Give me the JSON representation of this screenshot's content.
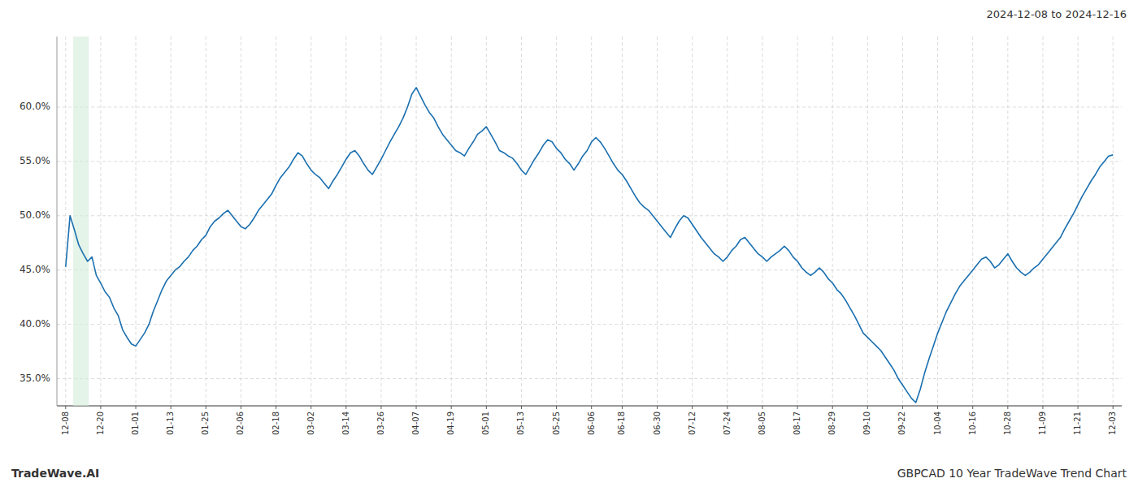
{
  "chart_data": {
    "type": "line",
    "title": "GBPCAD 10 Year TradeWave Trend Chart",
    "subtitle": "2024-12-08 to 2024-12-16",
    "annotations": [
      "TradeWave.AI"
    ],
    "color": "#1a6faf",
    "grid": true,
    "shade": {
      "start_frac": 0.007,
      "end_frac": 0.022,
      "color": "#d4edda"
    },
    "ylim": [
      0.325,
      0.665
    ],
    "yticks": [
      {
        "value": 0.35,
        "label": "35.0%"
      },
      {
        "value": 0.4,
        "label": "40.0%"
      },
      {
        "value": 0.45,
        "label": "45.0%"
      },
      {
        "value": 0.5,
        "label": "50.0%"
      },
      {
        "value": 0.55,
        "label": "55.0%"
      },
      {
        "value": 0.6,
        "label": "60.0%"
      }
    ],
    "categories": [
      "12-08",
      null,
      null,
      null,
      null,
      null,
      null,
      null,
      "12-20",
      null,
      null,
      null,
      null,
      null,
      null,
      null,
      "01-01",
      null,
      null,
      null,
      null,
      null,
      null,
      null,
      "01-13",
      null,
      null,
      null,
      null,
      null,
      null,
      null,
      "01-25",
      null,
      null,
      null,
      null,
      null,
      null,
      null,
      "02-06",
      null,
      null,
      null,
      null,
      null,
      null,
      null,
      "02-18",
      null,
      null,
      null,
      null,
      null,
      null,
      null,
      "03-02",
      null,
      null,
      null,
      null,
      null,
      null,
      null,
      "03-14",
      null,
      null,
      null,
      null,
      null,
      null,
      null,
      "03-26",
      null,
      null,
      null,
      null,
      null,
      null,
      null,
      "04-07",
      null,
      null,
      null,
      null,
      null,
      null,
      null,
      "04-19",
      null,
      null,
      null,
      null,
      null,
      null,
      null,
      "05-01",
      null,
      null,
      null,
      null,
      null,
      null,
      null,
      "05-13",
      null,
      null,
      null,
      null,
      null,
      null,
      null,
      "05-25",
      null,
      null,
      null,
      null,
      null,
      null,
      null,
      "06-06",
      null,
      null,
      null,
      null,
      null,
      null,
      "06-18",
      null,
      null,
      null,
      null,
      null,
      null,
      null,
      "06-30",
      null,
      null,
      null,
      null,
      null,
      null,
      null,
      "07-12",
      null,
      null,
      null,
      null,
      null,
      null,
      null,
      "07-24",
      null,
      null,
      null,
      null,
      null,
      null,
      null,
      "08-05",
      null,
      null,
      null,
      null,
      null,
      null,
      null,
      "08-17",
      null,
      null,
      null,
      null,
      null,
      null,
      null,
      "08-29",
      null,
      null,
      null,
      null,
      null,
      null,
      null,
      "09-10",
      null,
      null,
      null,
      null,
      null,
      null,
      null,
      "09-22",
      null,
      null,
      null,
      null,
      null,
      null,
      null,
      "10-04",
      null,
      null,
      null,
      null,
      null,
      null,
      null,
      "10-16",
      null,
      null,
      null,
      null,
      null,
      null,
      null,
      "10-28",
      null,
      null,
      null,
      null,
      null,
      null,
      null,
      "11-09",
      null,
      null,
      null,
      null,
      null,
      null,
      null,
      "11-21",
      null,
      null,
      null,
      null,
      null,
      null,
      null,
      "12-03"
    ],
    "values": [
      0.453,
      0.5,
      0.487,
      0.473,
      0.465,
      0.458,
      0.462,
      0.445,
      0.438,
      0.43,
      0.425,
      0.415,
      0.408,
      0.395,
      0.388,
      0.382,
      0.38,
      0.386,
      0.392,
      0.4,
      0.412,
      0.422,
      0.432,
      0.44,
      0.445,
      0.45,
      0.453,
      0.458,
      0.462,
      0.468,
      0.472,
      0.478,
      0.482,
      0.49,
      0.495,
      0.498,
      0.502,
      0.505,
      0.5,
      0.495,
      0.49,
      0.488,
      0.492,
      0.498,
      0.505,
      0.51,
      0.515,
      0.52,
      0.528,
      0.535,
      0.54,
      0.545,
      0.552,
      0.558,
      0.555,
      0.548,
      0.542,
      0.538,
      0.535,
      0.53,
      0.525,
      0.532,
      0.538,
      0.545,
      0.552,
      0.558,
      0.56,
      0.555,
      0.548,
      0.542,
      0.538,
      0.545,
      0.552,
      0.56,
      0.568,
      0.575,
      0.582,
      0.59,
      0.6,
      0.612,
      0.618,
      0.61,
      0.602,
      0.595,
      0.59,
      0.582,
      0.575,
      0.57,
      0.565,
      0.56,
      0.558,
      0.555,
      0.562,
      0.568,
      0.575,
      0.578,
      0.582,
      0.575,
      0.568,
      0.56,
      0.558,
      0.555,
      0.553,
      0.548,
      0.542,
      0.538,
      0.545,
      0.552,
      0.558,
      0.565,
      0.57,
      0.568,
      0.562,
      0.558,
      0.552,
      0.548,
      0.542,
      0.548,
      0.555,
      0.56,
      0.568,
      0.572,
      0.568,
      0.562,
      0.555,
      0.548,
      0.542,
      0.538,
      0.532,
      0.525,
      0.518,
      0.512,
      0.508,
      0.505,
      0.5,
      0.495,
      0.49,
      0.485,
      0.48,
      0.488,
      0.495,
      0.5,
      0.498,
      0.492,
      0.486,
      0.48,
      0.475,
      0.47,
      0.465,
      0.462,
      0.458,
      0.462,
      0.468,
      0.472,
      0.478,
      0.48,
      0.475,
      0.47,
      0.465,
      0.462,
      0.458,
      0.462,
      0.465,
      0.468,
      0.472,
      0.468,
      0.462,
      0.458,
      0.452,
      0.448,
      0.445,
      0.448,
      0.452,
      0.448,
      0.442,
      0.438,
      0.432,
      0.428,
      0.422,
      0.415,
      0.408,
      0.4,
      0.392,
      0.388,
      0.384,
      0.38,
      0.376,
      0.37,
      0.364,
      0.358,
      0.35,
      0.344,
      0.338,
      0.332,
      0.328,
      0.34,
      0.355,
      0.368,
      0.38,
      0.392,
      0.402,
      0.412,
      0.42,
      0.428,
      0.435,
      0.44,
      0.445,
      0.45,
      0.455,
      0.46,
      0.462,
      0.458,
      0.452,
      0.455,
      0.46,
      0.465,
      0.458,
      0.452,
      0.448,
      0.445,
      0.448,
      0.452,
      0.455,
      0.46,
      0.465,
      0.47,
      0.475,
      0.48,
      0.488,
      0.495,
      0.502,
      0.51,
      0.518,
      0.525,
      0.532,
      0.538,
      0.545,
      0.55,
      0.555,
      0.556
    ]
  }
}
